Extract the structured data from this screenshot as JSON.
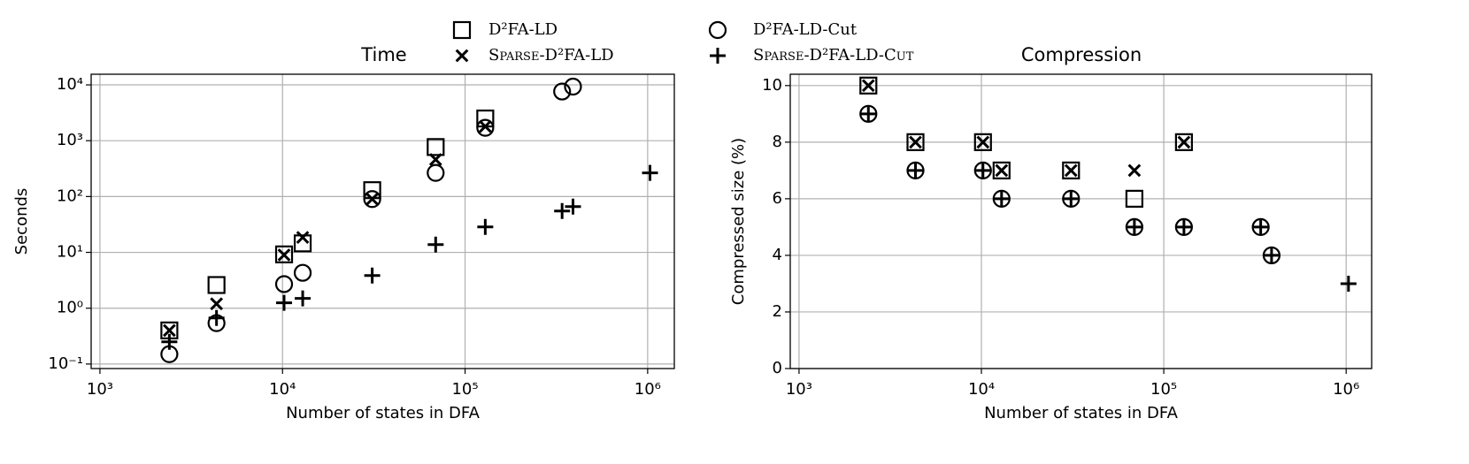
{
  "chart_data": [
    {
      "type": "scatter",
      "title": "Time",
      "x_label": "Number of states in DFA",
      "y_label": "Seconds",
      "xscale": "log",
      "yscale": "log",
      "grid": true,
      "xlim": [
        895,
        1400000
      ],
      "ylim": [
        0.083,
        15500
      ],
      "xticks": [
        {
          "value": 1000,
          "label": "10³"
        },
        {
          "value": 10000,
          "label": "10⁴"
        },
        {
          "value": 100000,
          "label": "10⁵"
        },
        {
          "value": 1000000,
          "label": "10⁶"
        }
      ],
      "yticks": [
        {
          "value": 0.1,
          "label": "10⁻¹"
        },
        {
          "value": 1,
          "label": "10⁰"
        },
        {
          "value": 10,
          "label": "10¹"
        },
        {
          "value": 100,
          "label": "10²"
        },
        {
          "value": 1000,
          "label": "10³"
        },
        {
          "value": 10000,
          "label": "10⁴"
        }
      ],
      "series": [
        {
          "name": "D²FA-LD",
          "marker": "square",
          "color": "#000000",
          "x": [
            2400,
            4350,
            10200,
            12900,
            31000,
            69000,
            129000
          ],
          "values": [
            0.4,
            2.6,
            9.2,
            14.5,
            130,
            770,
            2500
          ]
        },
        {
          "name": "D²FA-LD-Cut",
          "marker": "circle",
          "color": "#000000",
          "x": [
            2400,
            4350,
            10200,
            12900,
            31000,
            69000,
            129000,
            340000,
            390000
          ],
          "values": [
            0.15,
            0.54,
            2.7,
            4.3,
            90,
            265,
            1700,
            7600,
            9300
          ]
        },
        {
          "name": "Sparse-D²FA-LD",
          "marker": "x",
          "color": "#000000",
          "x": [
            2400,
            4350,
            10200,
            12900,
            31000,
            69000,
            129000
          ],
          "values": [
            0.4,
            1.2,
            9,
            18.5,
            90,
            460,
            1800
          ]
        },
        {
          "name": "Sparse-D²FA-LD-Cut",
          "marker": "plus",
          "color": "#000000",
          "x": [
            2400,
            4350,
            10200,
            12900,
            31000,
            69000,
            129000,
            340000,
            390000,
            1030000
          ],
          "values": [
            0.25,
            0.67,
            1.25,
            1.5,
            3.85,
            13.8,
            28.6,
            55,
            66,
            265
          ]
        }
      ]
    },
    {
      "type": "scatter",
      "title": "Compression",
      "x_label": "Number of states in DFA",
      "y_label": "Compressed size (%)",
      "xscale": "log",
      "yscale": "linear",
      "grid": true,
      "xlim": [
        895,
        1380000
      ],
      "ylim": [
        0,
        10.4
      ],
      "xticks": [
        {
          "value": 1000,
          "label": "10³"
        },
        {
          "value": 10000,
          "label": "10⁴"
        },
        {
          "value": 100000,
          "label": "10⁵"
        },
        {
          "value": 1000000,
          "label": "10⁶"
        }
      ],
      "yticks": [
        0,
        2,
        4,
        6,
        8,
        10
      ],
      "series": [
        {
          "marker": "square",
          "color": "#000000",
          "x": [
            2400,
            4350,
            10200,
            12900,
            31000,
            69000,
            129000
          ],
          "values": [
            10,
            8,
            8,
            7,
            7,
            6,
            8
          ]
        },
        {
          "marker": "circle",
          "color": "#000000",
          "x": [
            2400,
            4350,
            10200,
            12900,
            31000,
            69000,
            129000,
            340000,
            390000
          ],
          "values": [
            9,
            7,
            7,
            6,
            6,
            5,
            5,
            5,
            4
          ]
        },
        {
          "marker": "x",
          "color": "#000000",
          "x": [
            2400,
            4350,
            10200,
            12900,
            31000,
            69000,
            129000
          ],
          "values": [
            10,
            8,
            8,
            7,
            7,
            7,
            8
          ]
        },
        {
          "marker": "plus",
          "color": "#000000",
          "x": [
            2400,
            4350,
            10200,
            12900,
            31000,
            69000,
            129000,
            340000,
            390000,
            1030000
          ],
          "values": [
            9,
            7,
            7,
            6,
            6,
            5,
            5,
            5,
            4,
            3
          ]
        }
      ]
    }
  ]
}
